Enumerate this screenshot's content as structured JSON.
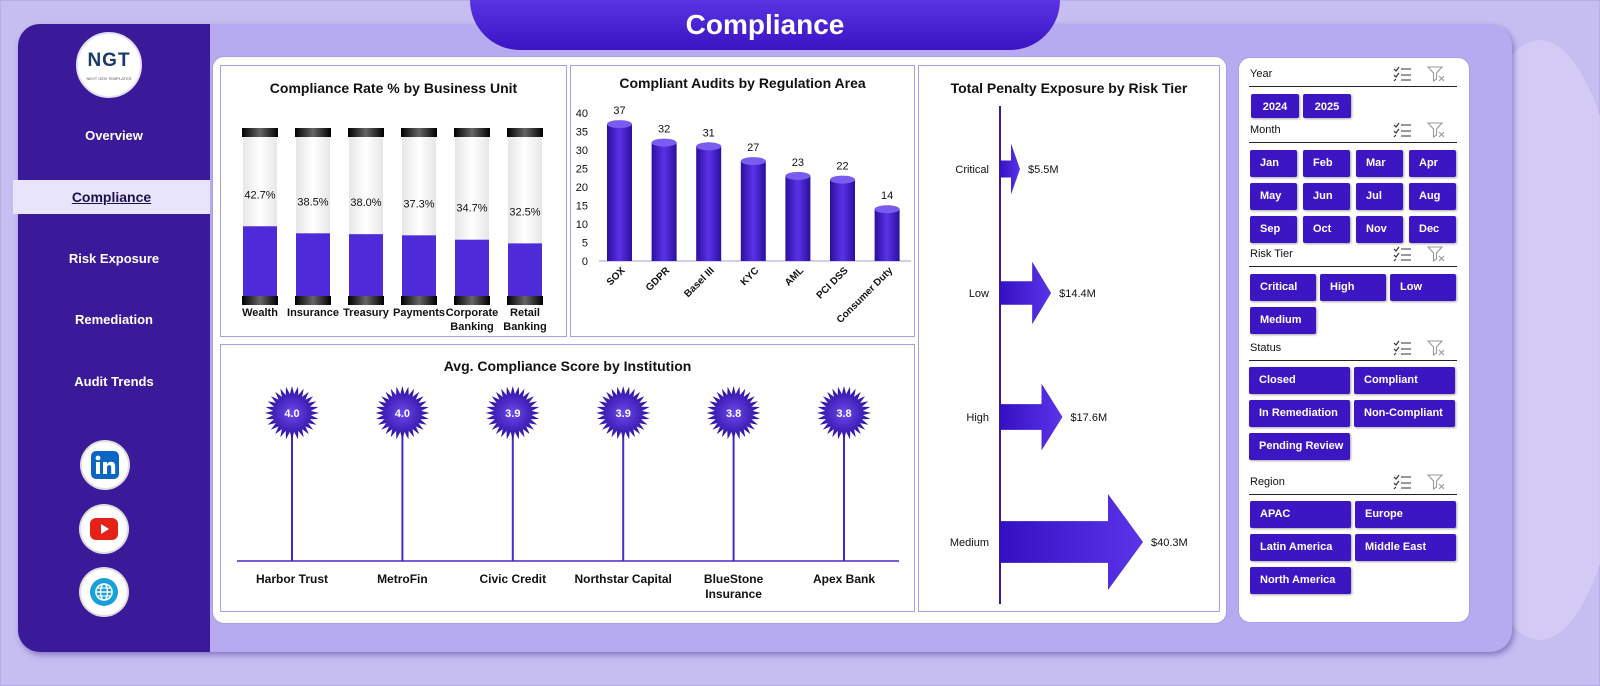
{
  "header": {
    "title": "Compliance"
  },
  "logo": {
    "text": "NGT",
    "tagline": "NEXT GEN TEMPLATES"
  },
  "sidebar": {
    "items": [
      {
        "label": "Overview",
        "active": false
      },
      {
        "label": "Compliance",
        "active": true
      },
      {
        "label": "Risk Exposure",
        "active": false
      },
      {
        "label": "Remediation",
        "active": false
      },
      {
        "label": "Audit Trends",
        "active": false
      }
    ],
    "social": [
      {
        "icon": "linkedin-icon"
      },
      {
        "icon": "youtube-icon"
      },
      {
        "icon": "globe-icon"
      }
    ]
  },
  "colors": {
    "primary": "#3d16c4",
    "sidebar": "#3b1a9a",
    "accent": "#5b3ce0"
  },
  "chart_data": [
    {
      "type": "bar",
      "title": "Compliance Rate % by Business Unit",
      "categories": [
        "Wealth",
        "Insurance",
        "Treasury",
        "Payments",
        "Corporate Banking",
        "Retail Banking"
      ],
      "values": [
        42.7,
        38.5,
        38.0,
        37.3,
        34.7,
        32.5
      ],
      "labels": [
        "42.7%",
        "38.5%",
        "38.0%",
        "37.3%",
        "34.7%",
        "32.5%"
      ],
      "ylim": [
        0,
        100
      ]
    },
    {
      "type": "bar",
      "title": "Compliant Audits by Regulation Area",
      "categories": [
        "SOX",
        "GDPR",
        "Basel III",
        "KYC",
        "AML",
        "PCI DSS",
        "Consumer Duty"
      ],
      "values": [
        37,
        32,
        31,
        27,
        23,
        22,
        14
      ],
      "yticks": [
        "0",
        "5",
        "10",
        "15",
        "20",
        "25",
        "30",
        "35",
        "40"
      ],
      "ylim": [
        0,
        40
      ]
    },
    {
      "type": "bar",
      "title": "Total Penalty Exposure by Risk Tier",
      "categories": [
        "Critical",
        "Low",
        "High",
        "Medium"
      ],
      "values": [
        5.5,
        14.4,
        17.6,
        40.3
      ],
      "labels": [
        "$5.5M",
        "$14.4M",
        "$17.6M",
        "$40.3M"
      ]
    },
    {
      "type": "scatter",
      "title": "Avg. Compliance Score by Institution",
      "categories": [
        "Harbor Trust",
        "MetroFin",
        "Civic Credit",
        "Northstar Capital",
        "BlueStone Insurance",
        "Apex Bank"
      ],
      "values": [
        4.0,
        4.0,
        3.9,
        3.9,
        3.8,
        3.8
      ],
      "labels": [
        "4.0",
        "4.0",
        "3.9",
        "3.9",
        "3.8",
        "3.8"
      ]
    }
  ],
  "filters": {
    "year": {
      "label": "Year",
      "options": [
        "2024",
        "2025"
      ]
    },
    "month": {
      "label": "Month",
      "options": [
        "Jan",
        "Feb",
        "Mar",
        "Apr",
        "May",
        "Jun",
        "Jul",
        "Aug",
        "Sep",
        "Oct",
        "Nov",
        "Dec"
      ]
    },
    "risk_tier": {
      "label": "Risk Tier",
      "options": [
        "Critical",
        "High",
        "Low",
        "Medium"
      ]
    },
    "status": {
      "label": "Status",
      "options": [
        "Closed",
        "Compliant",
        "In Remediation",
        "Non-Compliant",
        "Pending Review"
      ]
    },
    "region": {
      "label": "Region",
      "options": [
        "APAC",
        "Europe",
        "Latin America",
        "Middle East",
        "North America"
      ]
    }
  }
}
